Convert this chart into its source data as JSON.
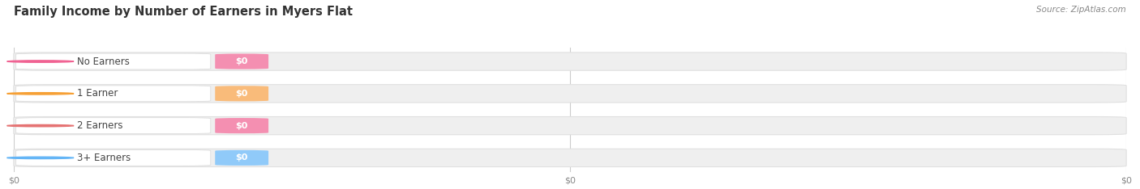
{
  "title": "Family Income by Number of Earners in Myers Flat",
  "source": "Source: ZipAtlas.com",
  "categories": [
    "No Earners",
    "1 Earner",
    "2 Earners",
    "3+ Earners"
  ],
  "values": [
    0,
    0,
    0,
    0
  ],
  "bar_colors": [
    "#f48fb1",
    "#f9bb7a",
    "#f48fb1",
    "#90caf9"
  ],
  "dot_colors": [
    "#f06292",
    "#f6a035",
    "#e57373",
    "#64b5f6"
  ],
  "background_color": "#ffffff",
  "bar_bg_color": "#efefef",
  "bar_bg_edge": "#e0e0e0",
  "figsize": [
    14.06,
    2.34
  ],
  "dpi": 100,
  "xtick_labels": [
    "$0",
    "$0",
    "$0"
  ],
  "xtick_positions": [
    0.0,
    0.5,
    1.0
  ]
}
